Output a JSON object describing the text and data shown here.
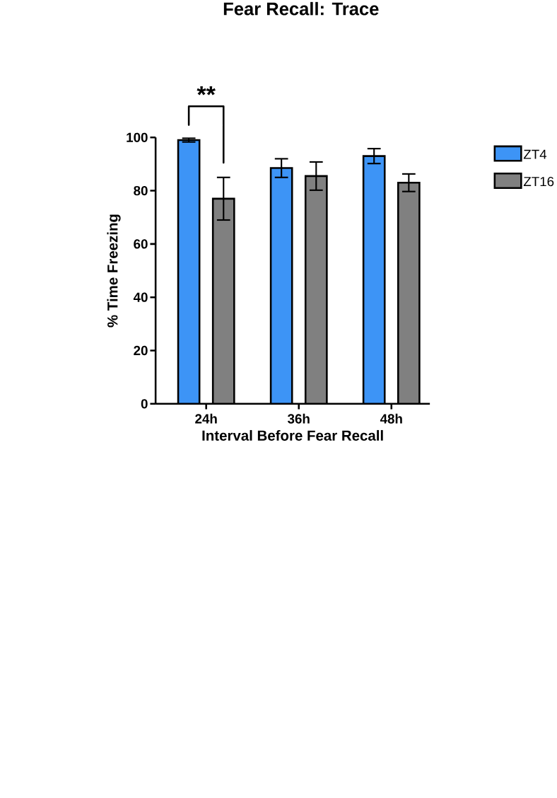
{
  "chart_data": {
    "type": "bar",
    "title": "Fear Recall: Trace",
    "xlabel": "Interval Before Fear Recall",
    "ylabel": "% Time Freezing",
    "categories": [
      "24h",
      "36h",
      "48h"
    ],
    "series": [
      {
        "name": "ZT4",
        "color": "#3d94f6",
        "values": [
          99,
          88.5,
          93
        ],
        "errors": [
          0.7,
          3.5,
          2.8
        ]
      },
      {
        "name": "ZT16",
        "color": "#808080",
        "values": [
          77,
          85.5,
          83
        ],
        "errors": [
          8,
          5.3,
          3.3
        ]
      }
    ],
    "ylim": [
      0,
      100
    ],
    "yticks": [
      0,
      20,
      40,
      60,
      80,
      100
    ],
    "legend": "right",
    "grid": false,
    "annotations": [
      "**"
    ]
  }
}
